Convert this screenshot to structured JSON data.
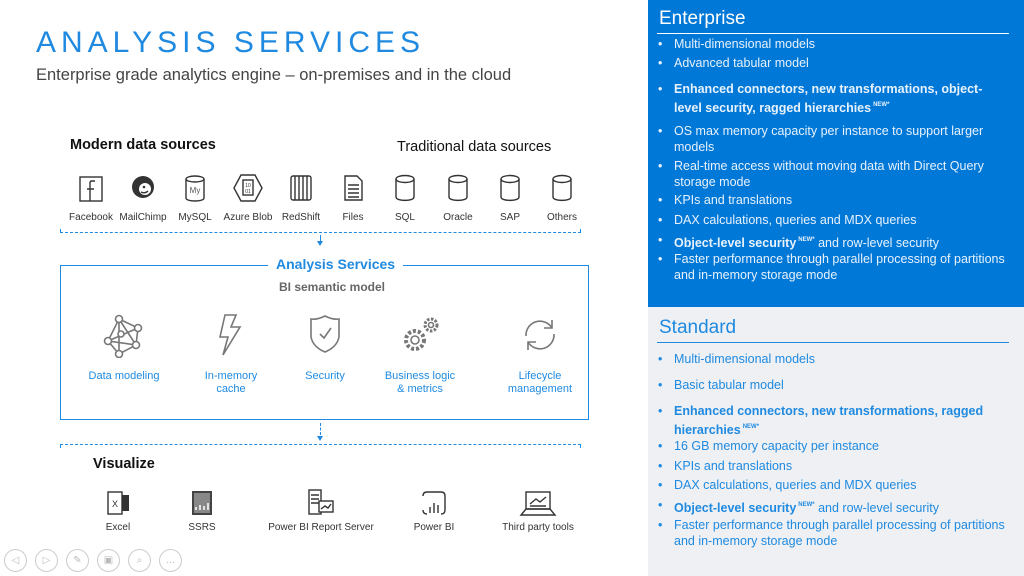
{
  "title": "ANALYSIS SERVICES",
  "subtitle": "Enterprise grade analytics engine – on-premises and in the cloud",
  "modern_heading": "Modern data sources",
  "traditional_heading": "Traditional data sources",
  "sources": [
    {
      "label": "Facebook",
      "icon": "facebook-icon"
    },
    {
      "label": "MailChimp",
      "icon": "mailchimp-icon"
    },
    {
      "label": "MySQL",
      "icon": "mysql-icon",
      "glyph": "My"
    },
    {
      "label": "Azure Blob",
      "icon": "azure-blob-icon",
      "glyph": "10\n01"
    },
    {
      "label": "RedShift",
      "icon": "redshift-icon"
    },
    {
      "label": "Files",
      "icon": "file-icon"
    },
    {
      "label": "SQL",
      "icon": "database-icon"
    },
    {
      "label": "Oracle",
      "icon": "database-icon"
    },
    {
      "label": "SAP",
      "icon": "database-icon"
    },
    {
      "label": "Others",
      "icon": "database-icon"
    }
  ],
  "analysis": {
    "title": "Analysis Services",
    "subtitle": "BI semantic model",
    "features": [
      {
        "label": "Data modeling",
        "icon": "network-icon"
      },
      {
        "label": "In-memory cache",
        "icon": "lightning-icon"
      },
      {
        "label": "Security",
        "icon": "shield-check-icon"
      },
      {
        "label": "Business logic & metrics",
        "icon": "gears-icon"
      },
      {
        "label": "Lifecycle management",
        "icon": "refresh-cycle-icon"
      }
    ]
  },
  "visualize": {
    "heading": "Visualize",
    "tools": [
      {
        "label": "Excel",
        "icon": "excel-icon"
      },
      {
        "label": "SSRS",
        "icon": "ssrs-icon"
      },
      {
        "label": "Power BI Report Server",
        "icon": "report-server-icon"
      },
      {
        "label": "Power BI",
        "icon": "power-bi-icon"
      },
      {
        "label": "Third party tools",
        "icon": "laptop-chart-icon"
      }
    ]
  },
  "nav_controls": [
    "previous",
    "next",
    "pen",
    "slides",
    "zoom",
    "more"
  ],
  "new_badge": "NEW*",
  "enterprise": {
    "heading": "Enterprise",
    "items": [
      {
        "text": "Multi-dimensional models"
      },
      {
        "text": "Advanced tabular model"
      },
      {
        "bold": "Enhanced connectors, new transformations, object-level security, ragged hierarchies",
        "new": true
      },
      {
        "text": "OS max memory capacity per instance to support larger models"
      },
      {
        "text": "Real-time access without moving data with Direct Query storage mode"
      },
      {
        "text": "KPIs and translations"
      },
      {
        "text": "DAX calculations, queries and MDX queries"
      },
      {
        "bold": "Object-level security",
        "new": true,
        "text": " and row-level security"
      },
      {
        "text": "Faster performance through parallel processing of partitions and in-memory storage mode"
      }
    ]
  },
  "standard": {
    "heading": "Standard",
    "items": [
      {
        "text": "Multi-dimensional models"
      },
      {
        "text": "Basic tabular model"
      },
      {
        "bold": "Enhanced connectors, new transformations, ragged hierarchies",
        "new": true
      },
      {
        "text": "16 GB memory capacity per instance"
      },
      {
        "text": "KPIs and translations"
      },
      {
        "text": "DAX calculations, queries and MDX queries"
      },
      {
        "bold": "Object-level security",
        "new": true,
        "text": " and row-level security"
      },
      {
        "text": "Faster performance through parallel processing of partitions and in-memory storage mode"
      }
    ]
  },
  "colors": {
    "accent": "#0078d7",
    "standard_bg": "#eef0f4",
    "link_blue": "#1f8ae0"
  }
}
